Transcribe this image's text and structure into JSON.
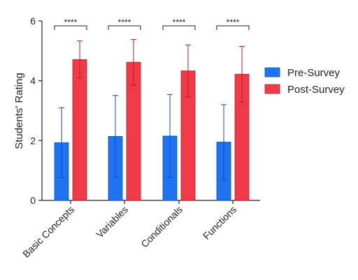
{
  "chart_data": {
    "type": "bar",
    "ylabel": "Students' Rating",
    "ylim": [
      0,
      6
    ],
    "yticks": [
      "0",
      "2",
      "4",
      "6"
    ],
    "categories": [
      "Basic Concepts",
      "Variables",
      "Conditionals",
      "Functions"
    ],
    "series": [
      {
        "name": "Pre-Survey",
        "color": "#1f72f0",
        "edge": "#0a4fc4",
        "values": [
          1.93,
          2.14,
          2.15,
          1.95
        ],
        "errors": [
          1.17,
          1.37,
          1.39,
          1.25
        ]
      },
      {
        "name": "Post-Survey",
        "color": "#f03a48",
        "edge": "#b01f2c",
        "values": [
          4.71,
          4.62,
          4.33,
          4.22
        ],
        "errors": [
          0.62,
          0.76,
          0.87,
          0.93
        ]
      }
    ],
    "significance": [
      "****",
      "****",
      "****",
      "****"
    ],
    "legend_position": "right",
    "grid": false
  }
}
